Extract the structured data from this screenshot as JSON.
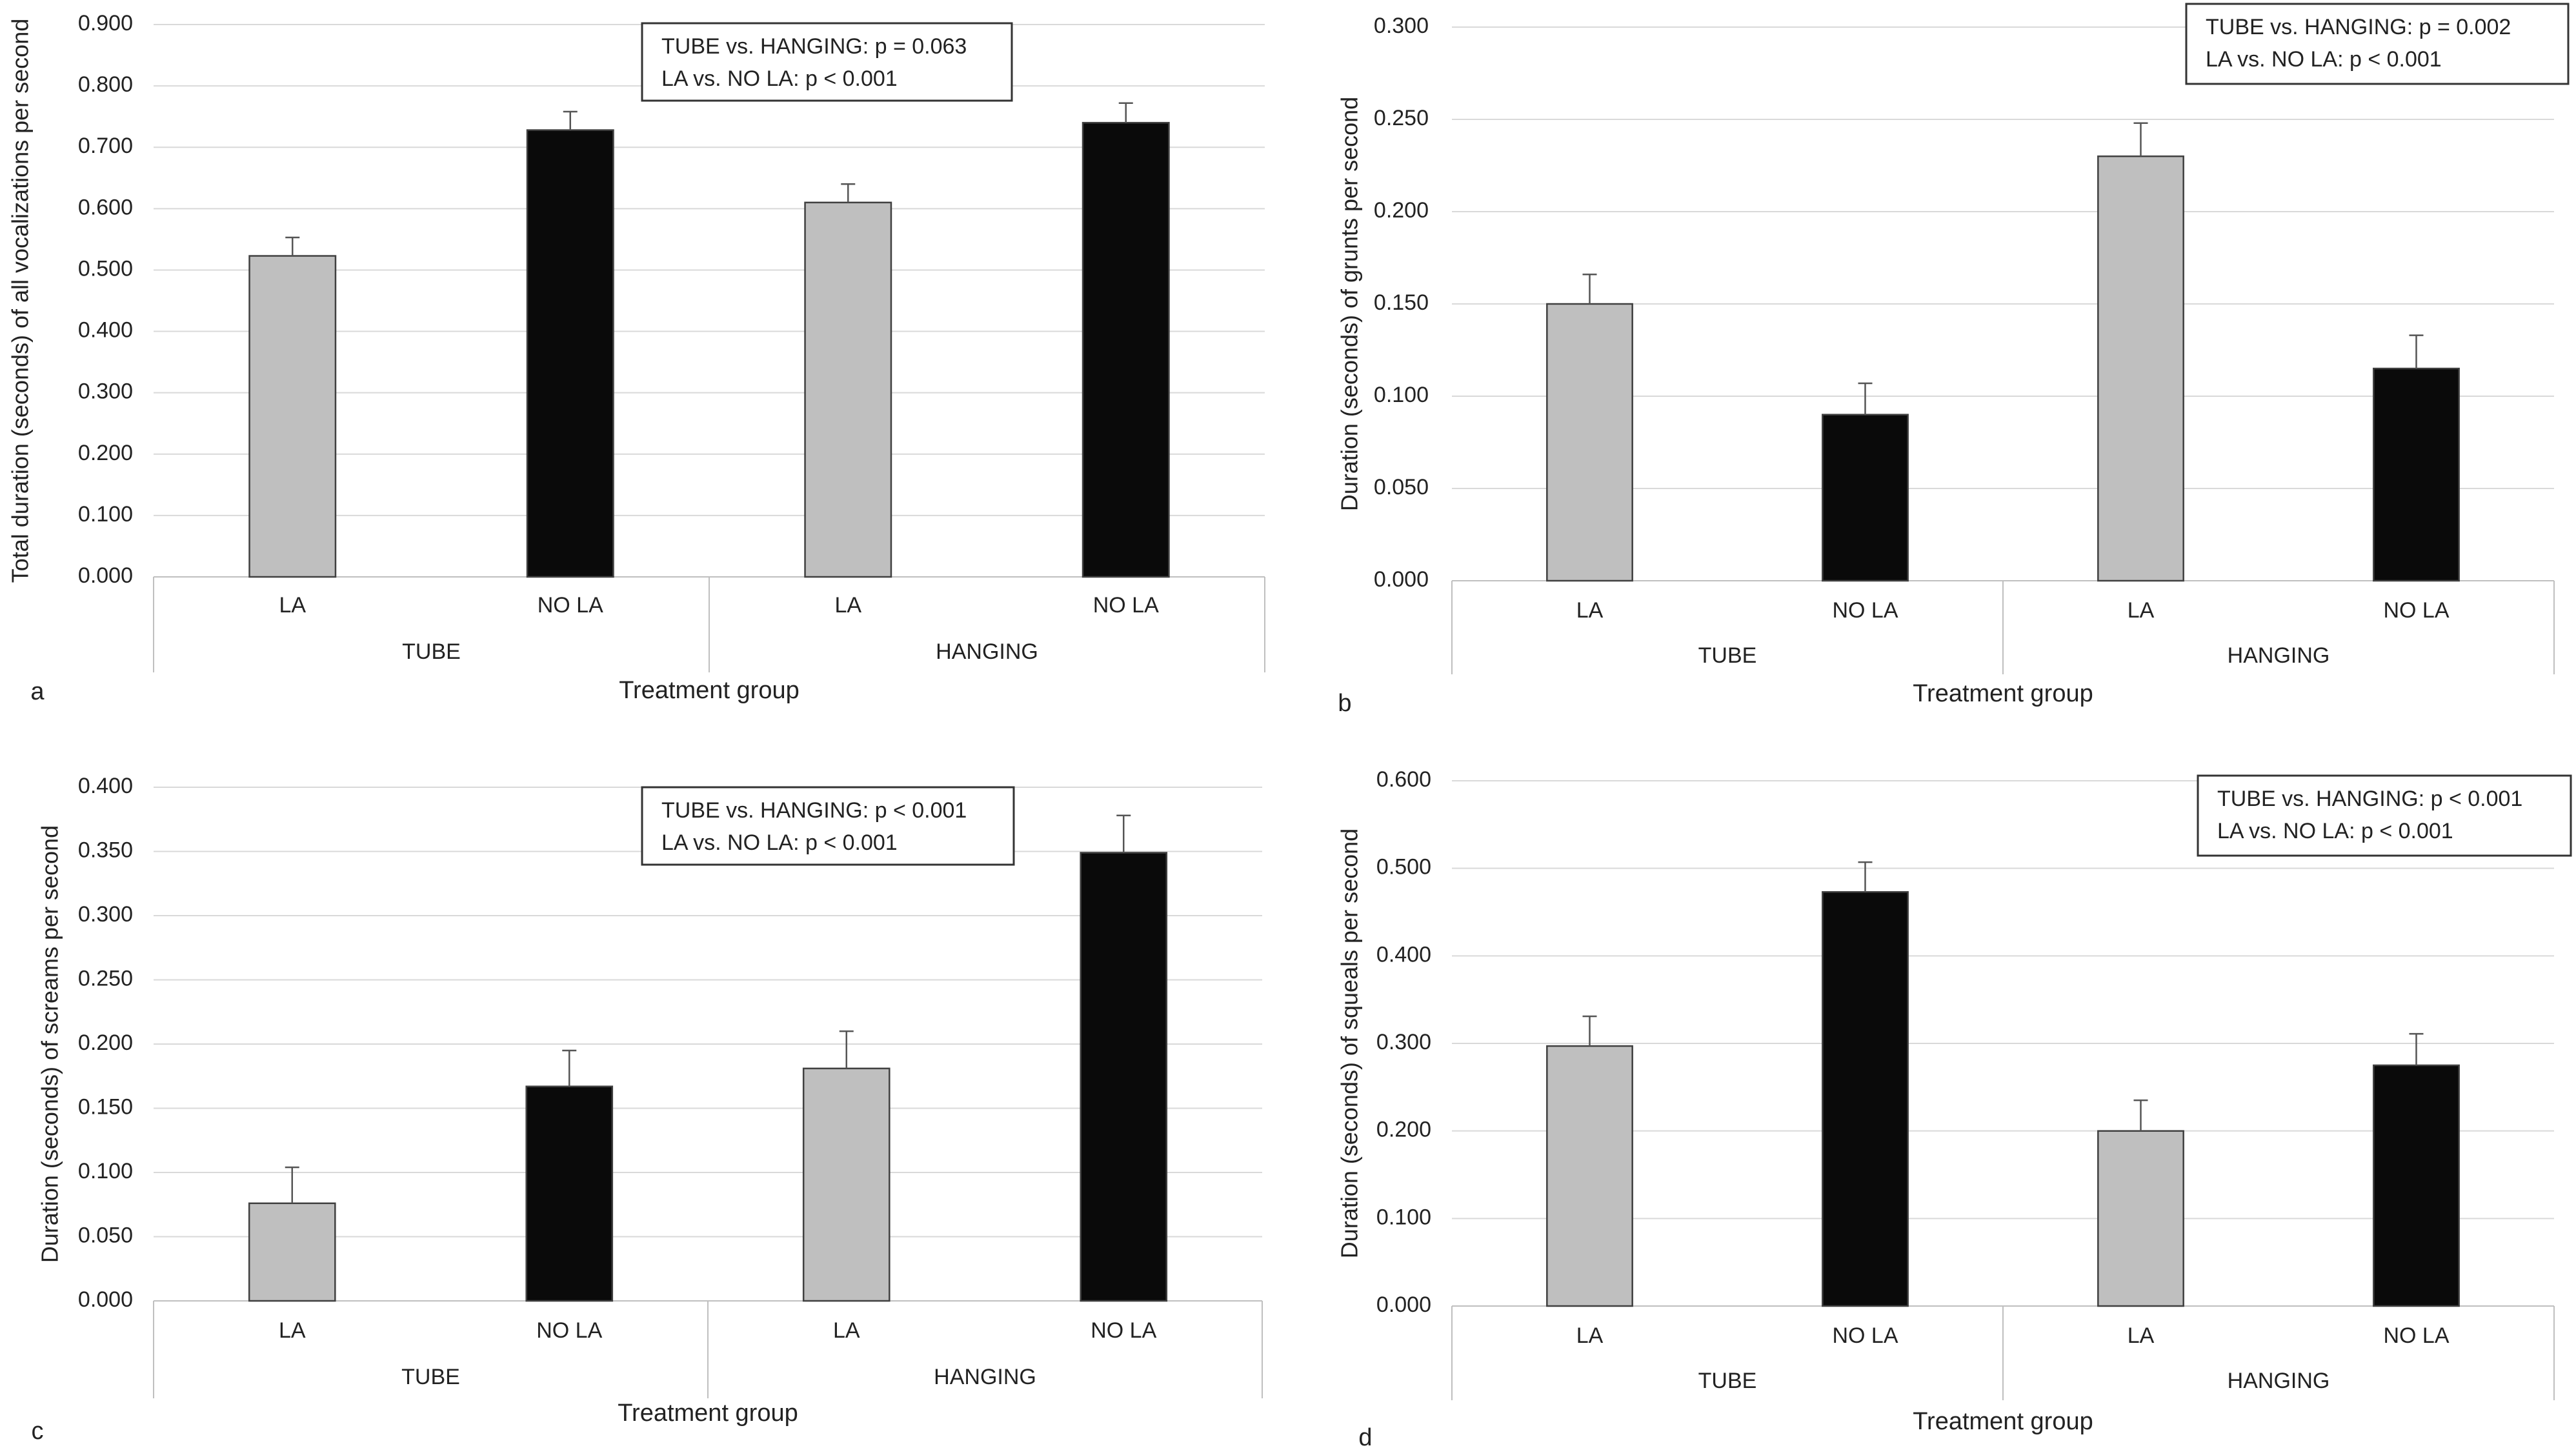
{
  "colors": {
    "la": "#bfbfbf",
    "no_la": "#0a0a0a",
    "bar_border": "#404040",
    "grid": "#d9d9d9",
    "axis": "#bfbfbf",
    "text": "#222222"
  },
  "chart_data": [
    {
      "panel": "a",
      "type": "bar",
      "ylabel": "Total duration (seconds) of all vocalizations per second",
      "xlabel": "Treatment group",
      "groups": [
        "TUBE",
        "HANGING"
      ],
      "categories": [
        "LA",
        "NO LA",
        "LA",
        "NO LA"
      ],
      "values": [
        0.523,
        0.728,
        0.61,
        0.74
      ],
      "errors": [
        0.03,
        0.03,
        0.03,
        0.032
      ],
      "ylim": [
        0,
        0.9
      ],
      "ystep": 0.1,
      "decimals": 3,
      "ticks": [
        "0.000",
        "0.100",
        "0.200",
        "0.300",
        "0.400",
        "0.500",
        "0.600",
        "0.700",
        "0.800",
        "0.900"
      ],
      "annotation": [
        "TUBE vs. HANGING: p = 0.063",
        "LA vs. NO LA: p < 0.001"
      ]
    },
    {
      "panel": "b",
      "type": "bar",
      "ylabel": "Duration (seconds) of grunts per second",
      "xlabel": "Treatment group",
      "groups": [
        "TUBE",
        "HANGING"
      ],
      "categories": [
        "LA",
        "NO LA",
        "LA",
        "NO LA"
      ],
      "values": [
        0.15,
        0.09,
        0.23,
        0.115
      ],
      "errors": [
        0.016,
        0.017,
        0.018,
        0.018
      ],
      "ylim": [
        0,
        0.3
      ],
      "ystep": 0.05,
      "decimals": 3,
      "ticks": [
        "0.000",
        "0.050",
        "0.100",
        "0.150",
        "0.200",
        "0.250",
        "0.300"
      ],
      "annotation": [
        "TUBE vs. HANGING: p = 0.002",
        "LA vs. NO LA: p < 0.001"
      ]
    },
    {
      "panel": "c",
      "type": "bar",
      "ylabel": "Duration (seconds) of screams per second",
      "xlabel": "Treatment group",
      "groups": [
        "TUBE",
        "HANGING"
      ],
      "categories": [
        "LA",
        "NO LA",
        "LA",
        "NO LA"
      ],
      "values": [
        0.076,
        0.167,
        0.181,
        0.349
      ],
      "errors": [
        0.028,
        0.028,
        0.029,
        0.029
      ],
      "ylim": [
        0,
        0.4
      ],
      "ystep": 0.05,
      "decimals": 3,
      "ticks": [
        "0.000",
        "0.050",
        "0.100",
        "0.150",
        "0.200",
        "0.250",
        "0.300",
        "0.350",
        "0.400"
      ],
      "annotation": [
        "TUBE vs. HANGING: p < 0.001",
        "LA vs. NO LA: p < 0.001"
      ]
    },
    {
      "panel": "d",
      "type": "bar",
      "ylabel": "Duration (seconds) of squeals per second",
      "xlabel": "Treatment group",
      "groups": [
        "TUBE",
        "HANGING"
      ],
      "categories": [
        "LA",
        "NO LA",
        "LA",
        "NO LA"
      ],
      "values": [
        0.297,
        0.473,
        0.2,
        0.275
      ],
      "errors": [
        0.034,
        0.034,
        0.035,
        0.036
      ],
      "ylim": [
        0,
        0.6
      ],
      "ystep": 0.1,
      "decimals": 3,
      "ticks": [
        "0.000",
        "0.100",
        "0.200",
        "0.300",
        "0.400",
        "0.500",
        "0.600"
      ],
      "annotation": [
        "TUBE vs. HANGING: p < 0.001",
        "LA vs. NO LA: p < 0.001"
      ]
    }
  ]
}
